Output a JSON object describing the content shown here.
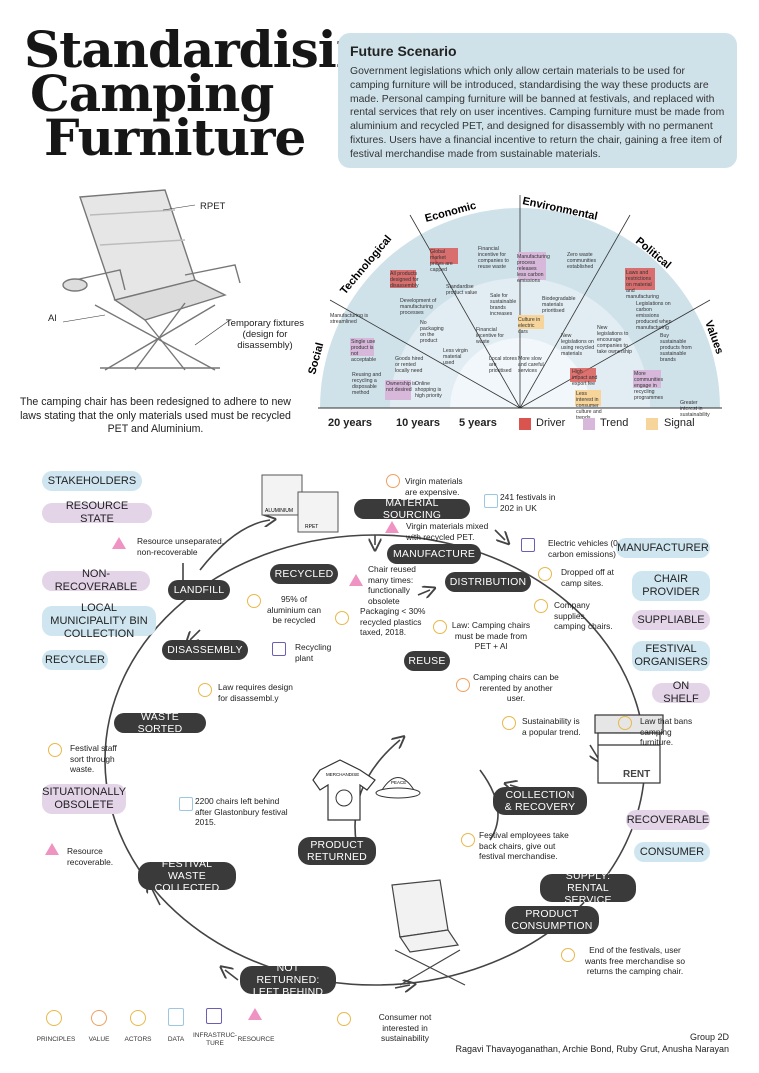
{
  "title": {
    "line1": "Standardising",
    "line2": "Camping",
    "line3": "Furniture"
  },
  "scenario": {
    "heading": "Future Scenario",
    "body": "Government legislations which only allow certain materials to be used for camping furniture will be introduced, standardising the way these products are made. Personal camping furniture will be banned at festivals, and replaced with rental services that rely on user incentives. Camping furniture must be made from aluminium and recycled PET, and designed for disassembly with no permanent fixtures. Users have a financial incentive to return the chair, gaining a free item of festival merchandise made from sustainable materials."
  },
  "chair": {
    "label_rpet": "RPET",
    "label_al": "Al",
    "label_fixtures": "Temporary fixtures (design for disassembly)",
    "caption": "The camping chair has been redesigned to adhere to new laws stating that the only materials used must be recycled PET and Aluminium."
  },
  "radar": {
    "sectors": [
      "Social",
      "Technological",
      "Economic",
      "Environmental",
      "Political",
      "Values"
    ],
    "rings": [
      "20 years",
      "10 years",
      "5 years"
    ],
    "legend": [
      {
        "label": "Driver",
        "color": "#d9534f"
      },
      {
        "label": "Trend",
        "color": "#d7b7da"
      },
      {
        "label": "Signal",
        "color": "#f6d49a"
      }
    ],
    "items": [
      "Manufacturing is streamlined",
      "Single use product is not acceptable",
      "Reusing and recycling a disposable method",
      "All products designed for disassembly",
      "Global market prices are capped",
      "Development of manufacturing processes",
      "No packaging on the product",
      "Ownership is not desired",
      "Goods hired or rented locally need",
      "Online shopping is high priority",
      "Less virgin material used",
      "Standardise product value",
      "Financial incentive for companies to reuse waste",
      "Sale for sustainable brands increases",
      "Financial incentive for waste",
      "Local stores are prioritised",
      "Manufacturing process releases less carbon emissions",
      "Biodegradable materials prioritised",
      "Culture in electric cars",
      "More slow and careful services",
      "High impact and export fee",
      "Less interest in consumer culture and trends",
      "New legislations on using recycled materials",
      "Zero waste communities established",
      "Laws and restrictions on material and manufacturing",
      "New legislations to encourage companies to take ownership",
      "Legislations on carbon emissions produced when manufacturing",
      "Buy sustainable products from sustainable brands",
      "More communities engage in recycling programmes",
      "Greater interest in sustainability"
    ]
  },
  "cycle": {
    "nodes": [
      "MATERIAL SOURCING",
      "MANUFACTURE",
      "DISTRIBUTION",
      "RECYCLED",
      "LANDFILL",
      "DISASSEMBLY",
      "REUSE",
      "WASTE SORTED",
      "COLLECTION & RECOVERY",
      "PRODUCT RETURNED",
      "SUPPLY: RENTAL SERVICE",
      "PRODUCT CONSUMPTION",
      "FESTIVAL WASTE COLLECTED",
      "NOT RETURNED: LEFT BEHIND"
    ],
    "notes": {
      "virgin": "Virgin materials are expensive.",
      "festivals": "241 festivals in 202 in UK",
      "mixed": "Virgin materials mixed with recycled PET.",
      "ev": "Electric vehicles (0 carbon emissions)",
      "unseparated": "Resource unseparated, non-recoverable",
      "reused": "Chair reused many times: functionally obsolete",
      "dropped": "Dropped off at camp sites.",
      "aluminium": "95% of aluminium can be recycled",
      "packaging": "Packaging < 30% recycled plastics taxed, 2018.",
      "supplies": "Company supplies camping chairs.",
      "plant": "Recycling plant",
      "law_pet": "Law: Camping chairs must be made from PET + Al",
      "rerent": "Camping chairs can be rerented by another user.",
      "design_law": "Law requires design for disassembl.y",
      "trend": "Sustainability is a popular trend.",
      "ban": "Law that bans camping furniture.",
      "staff": "Festival staff sort through waste.",
      "glasto": "2200 chairs left behind after Glastonbury festival 2015.",
      "employees": "Festival employees take back chairs, give out festival merchandise.",
      "recoverable": "Resource recoverable.",
      "end": "End of the festivals, user wants free merchandise so returns the camping chair.",
      "not_interested": "Consumer not interested in sustainability"
    },
    "merch": {
      "shirt": "MERCHANDISE",
      "hat": "PEACE",
      "rent_sign": "RENT",
      "box1": "ALUMINIUM",
      "box2": "RPET"
    }
  },
  "left_tags": [
    {
      "label": "STAKEHOLDERS",
      "type": "blue"
    },
    {
      "label": "RESOURCE STATE",
      "type": "purple"
    },
    {
      "label": "NON-RECOVERABLE",
      "type": "purple"
    },
    {
      "label": "LOCAL MUNICIPALITY BIN COLLECTION",
      "type": "blue"
    },
    {
      "label": "RECYCLER",
      "type": "blue"
    },
    {
      "label": "SITUATIONALLY OBSOLETE",
      "type": "purple"
    }
  ],
  "right_tags": [
    {
      "label": "MANUFACTURER",
      "type": "blue"
    },
    {
      "label": "CHAIR PROVIDER",
      "type": "blue"
    },
    {
      "label": "SUPPLIABLE",
      "type": "purple"
    },
    {
      "label": "FESTIVAL ORGANISERS",
      "type": "blue"
    },
    {
      "label": "ON SHELF",
      "type": "purple"
    },
    {
      "label": "RECOVERABLE",
      "type": "purple"
    },
    {
      "label": "CONSUMER",
      "type": "blue"
    }
  ],
  "icon_key": [
    "PRINCIPLES",
    "VALUE",
    "ACTORS",
    "DATA",
    "INFRASTRUC-TURE",
    "RESOURCE"
  ],
  "credits": {
    "group": "Group 2D",
    "names": "Ragavi Thavayoganathan, Archie Bond, Ruby Grut, Anusha Narayan"
  }
}
